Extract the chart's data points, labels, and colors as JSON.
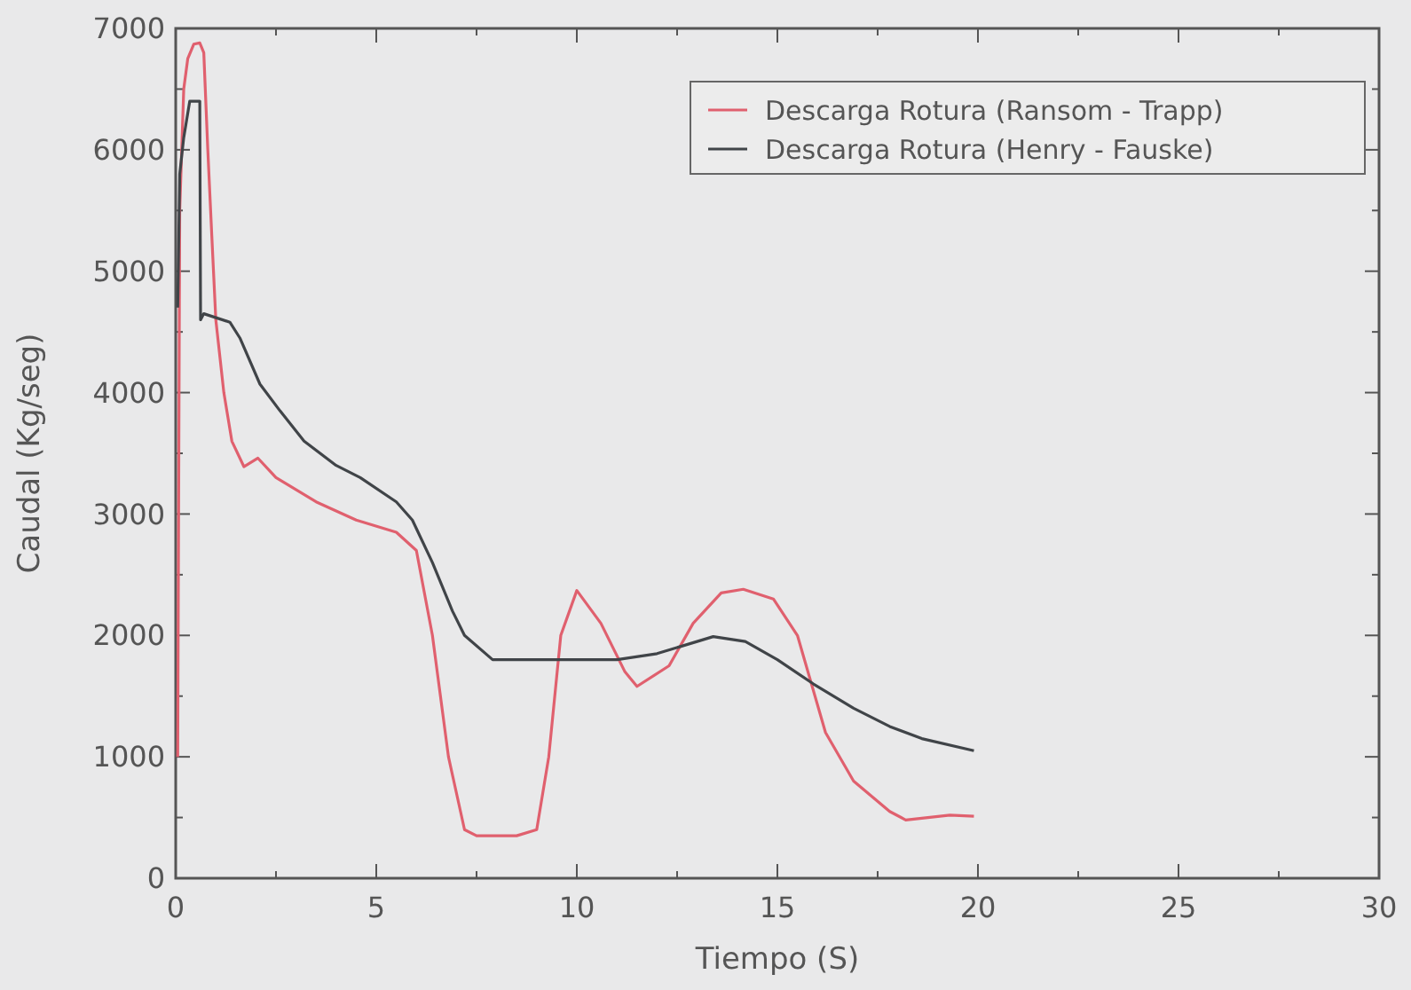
{
  "chart_data": {
    "type": "line",
    "xlabel": "Tiempo (S)",
    "ylabel": "Caudal (Kg/seg)",
    "xlim": [
      0,
      30
    ],
    "ylim": [
      0,
      7000
    ],
    "xticks": [
      0,
      {
        "value": 2.5,
        "label": null
      },
      5,
      {
        "value": 7.5,
        "label": null
      },
      10,
      {
        "value": 12.5,
        "label": null
      },
      15,
      {
        "value": 17.5,
        "label": null
      },
      20,
      {
        "value": 22.5,
        "label": null
      },
      25,
      {
        "value": 27.5,
        "label": null
      },
      30
    ],
    "yticks": [
      0,
      {
        "value": 500,
        "label": null
      },
      1000,
      {
        "value": 1500,
        "label": null
      },
      2000,
      {
        "value": 2500,
        "label": null
      },
      3000,
      {
        "value": 3500,
        "label": null
      },
      4000,
      {
        "value": 4500,
        "label": null
      },
      5000,
      {
        "value": 5500,
        "label": null
      },
      6000,
      {
        "value": 6500,
        "label": null
      },
      7000
    ],
    "legend": "top right",
    "grid": false,
    "marker": "none",
    "line_style": "solid",
    "series": [
      {
        "name": "Descarga Rotura (Ransom - Trapp)",
        "color": "#e0606e",
        "x": [
          0.05,
          0.1,
          0.2,
          0.3,
          0.45,
          0.6,
          0.7,
          0.8,
          0.9,
          1.0,
          1.2,
          1.4,
          1.7,
          2.05,
          2.5,
          3.5,
          4.5,
          5.5,
          6.0,
          6.4,
          6.8,
          7.2,
          7.5,
          8.5,
          9.0,
          9.3,
          9.6,
          10.0,
          10.6,
          11.2,
          11.5,
          12.3,
          12.9,
          13.6,
          14.15,
          14.9,
          15.5,
          16.2,
          16.9,
          17.8,
          18.2,
          19.3,
          19.9
        ],
        "values": [
          1000,
          5500,
          6500,
          6750,
          6870,
          6880,
          6800,
          6000,
          5290,
          4600,
          4000,
          3600,
          3390,
          3460,
          3300,
          3100,
          2950,
          2850,
          2700,
          2000,
          1000,
          400,
          350,
          350,
          400,
          1000,
          2000,
          2370,
          2100,
          1700,
          1580,
          1750,
          2100,
          2350,
          2380,
          2300,
          2000,
          1200,
          800,
          550,
          480,
          520,
          510
        ]
      },
      {
        "name": "Descarga Rotura (Henry - Fauske)",
        "color": "#404448",
        "x": [
          0.05,
          0.1,
          0.2,
          0.35,
          0.6,
          0.62,
          0.7,
          1.35,
          1.6,
          2.1,
          2.6,
          3.2,
          4.0,
          4.6,
          5.5,
          5.9,
          6.4,
          6.9,
          7.2,
          7.9,
          9.0,
          10.0,
          11.0,
          12.0,
          13.0,
          13.4,
          14.2,
          15.0,
          15.9,
          16.9,
          17.8,
          18.6,
          19.9
        ],
        "values": [
          4700,
          5800,
          6100,
          6400,
          6400,
          4600,
          4650,
          4580,
          4450,
          4070,
          3850,
          3600,
          3400,
          3300,
          3100,
          2950,
          2600,
          2200,
          2000,
          1800,
          1800,
          1800,
          1800,
          1850,
          1950,
          1990,
          1950,
          1800,
          1600,
          1400,
          1250,
          1150,
          1050
        ]
      }
    ]
  }
}
